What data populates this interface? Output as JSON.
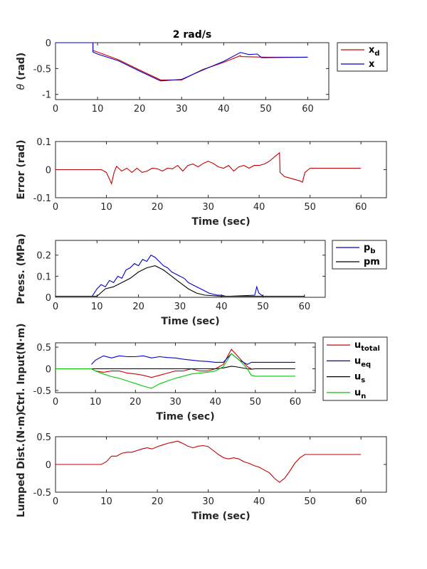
{
  "chart_data": [
    {
      "type": "line",
      "title": "2 rad/s",
      "xlabel": "",
      "ylabel": "θ (rad)",
      "xlim": [
        0,
        65
      ],
      "ylim": [
        -1.1,
        0
      ],
      "xticks": [
        "0",
        "10",
        "20",
        "30",
        "40",
        "50",
        "60"
      ],
      "yticks": [
        "0",
        "-0.5",
        "-1"
      ],
      "legend": [
        {
          "label": "x",
          "sub": "d",
          "color": "#d00000"
        },
        {
          "label": "x",
          "sub": "",
          "color": "#0000c8"
        }
      ],
      "series": [
        {
          "name": "x_d",
          "color": "#d00000",
          "x": [
            0,
            8.9,
            8.9,
            15,
            20,
            25,
            30,
            35,
            40,
            44,
            44.01,
            50,
            60
          ],
          "y": [
            0,
            0,
            -0.15,
            -0.33,
            -0.53,
            -0.72,
            -0.72,
            -0.52,
            -0.38,
            -0.25,
            -0.27,
            -0.28,
            -0.28
          ]
        },
        {
          "name": "x",
          "color": "#0000c8",
          "x": [
            0,
            8.9,
            8.9,
            10,
            15,
            20,
            25,
            30,
            35,
            40,
            44,
            44.5,
            46,
            48,
            49,
            50,
            60
          ],
          "y": [
            0,
            0,
            -0.18,
            -0.22,
            -0.35,
            -0.55,
            -0.74,
            -0.71,
            -0.53,
            -0.36,
            -0.19,
            -0.2,
            -0.23,
            -0.22,
            -0.29,
            -0.29,
            -0.28
          ]
        }
      ]
    },
    {
      "type": "line",
      "title": "",
      "xlabel": "Time (sec)",
      "ylabel": "Error (rad)",
      "xlim": [
        0,
        65
      ],
      "ylim": [
        -0.1,
        0.1
      ],
      "xticks": [
        "0",
        "10",
        "20",
        "30",
        "40",
        "50",
        "60"
      ],
      "yticks": [
        "0.1",
        "0",
        "-0.1"
      ],
      "series": [
        {
          "name": "error",
          "color": "#c00000",
          "x": [
            0,
            9,
            10,
            10.5,
            11,
            11.5,
            12,
            13,
            14,
            15,
            16,
            17,
            18,
            19,
            20,
            21,
            22,
            23,
            24,
            25,
            26,
            27,
            28,
            29,
            30,
            31,
            32,
            33,
            34,
            35,
            36,
            37,
            38,
            39,
            40,
            41,
            42,
            43,
            44,
            44.1,
            45,
            46,
            47,
            48,
            48.5,
            49,
            50,
            60
          ],
          "y": [
            0,
            0,
            -0.01,
            -0.03,
            -0.05,
            -0.01,
            0.012,
            -0.005,
            0.005,
            -0.01,
            0.005,
            -0.01,
            -0.005,
            0.005,
            0.003,
            -0.005,
            0.005,
            0.003,
            0.015,
            -0.005,
            0.015,
            0.02,
            0.01,
            0.022,
            0.03,
            0.022,
            0.01,
            0.005,
            0.015,
            -0.005,
            0.01,
            0.015,
            0.005,
            0.015,
            0.015,
            0.02,
            0.03,
            0.045,
            0.06,
            -0.01,
            -0.025,
            -0.03,
            -0.035,
            -0.04,
            -0.045,
            -0.01,
            0.005,
            0.005
          ]
        }
      ]
    },
    {
      "type": "line",
      "title": "",
      "xlabel": "Time (sec)",
      "ylabel": "Press. (MPa)",
      "xlim": [
        0,
        65
      ],
      "ylim": [
        0,
        0.27
      ],
      "xticks": [
        "0",
        "10",
        "20",
        "30",
        "40",
        "50",
        "60"
      ],
      "yticks": [
        "0.2",
        "0.1",
        "0"
      ],
      "legend": [
        {
          "label": "p",
          "sub": "b",
          "color": "#0000c8"
        },
        {
          "label": "pm",
          "sub": "",
          "color": "#000000"
        }
      ],
      "series": [
        {
          "name": "p_b",
          "color": "#0000c8",
          "x": [
            0,
            8.9,
            9,
            10,
            11,
            12,
            13,
            14,
            15,
            16,
            17,
            18,
            19,
            20,
            21,
            22,
            23,
            24,
            25,
            26,
            27,
            28,
            29,
            30,
            31,
            32,
            33,
            34,
            35,
            36,
            37,
            38,
            39,
            40,
            41,
            42,
            48,
            48.5,
            49,
            50,
            60
          ],
          "y": [
            0.005,
            0.005,
            0.01,
            0.04,
            0.06,
            0.05,
            0.08,
            0.07,
            0.1,
            0.09,
            0.13,
            0.14,
            0.16,
            0.15,
            0.18,
            0.17,
            0.2,
            0.19,
            0.17,
            0.15,
            0.14,
            0.12,
            0.11,
            0.1,
            0.09,
            0.07,
            0.06,
            0.05,
            0.04,
            0.03,
            0.02,
            0.015,
            0.01,
            0.01,
            0.005,
            0.005,
            0.01,
            0.05,
            0.02,
            0.005,
            0.005
          ]
        },
        {
          "name": "pm",
          "color": "#000000",
          "x": [
            0,
            10,
            12,
            14,
            16,
            18,
            20,
            22,
            24,
            26,
            28,
            30,
            32,
            34,
            36,
            40,
            42,
            60
          ],
          "y": [
            0.005,
            0.005,
            0.04,
            0.05,
            0.07,
            0.09,
            0.12,
            0.14,
            0.15,
            0.13,
            0.1,
            0.07,
            0.04,
            0.02,
            0.01,
            0.005,
            0.005,
            0.005
          ]
        }
      ]
    },
    {
      "type": "line",
      "title": "",
      "xlabel": "Time (sec)",
      "ylabel": "Ctrl. Input(N·m)",
      "xlim": [
        0,
        65
      ],
      "ylim": [
        -0.55,
        0.6
      ],
      "xticks": [
        "0",
        "10",
        "20",
        "30",
        "40",
        "50",
        "60"
      ],
      "yticks": [
        "0.5",
        "0",
        "-0.5"
      ],
      "legend": [
        {
          "label": "u",
          "sub": "total",
          "color": "#d00000"
        },
        {
          "label": "u",
          "sub": "eq",
          "color": "#0000c8"
        },
        {
          "label": "u",
          "sub": "s",
          "color": "#000000"
        },
        {
          "label": "u",
          "sub": "n",
          "color": "#00c800"
        }
      ],
      "series": [
        {
          "name": "u_total",
          "color": "#d00000",
          "x": [
            9,
            10,
            12,
            14,
            16,
            18,
            20,
            22,
            24,
            26,
            28,
            30,
            32,
            34,
            36,
            38,
            40,
            42,
            44,
            46,
            48,
            49
          ],
          "y": [
            0,
            -0.05,
            -0.08,
            -0.05,
            -0.05,
            -0.1,
            -0.12,
            -0.15,
            -0.2,
            -0.15,
            -0.1,
            -0.05,
            -0.05,
            0,
            -0.05,
            -0.05,
            0,
            0.1,
            0.45,
            0.25,
            0.05,
            0
          ]
        },
        {
          "name": "u_eq",
          "color": "#0000c8",
          "x": [
            9,
            10,
            12,
            14,
            16,
            18,
            20,
            22,
            24,
            26,
            28,
            30,
            32,
            34,
            36,
            38,
            40,
            42,
            44,
            46,
            48,
            49,
            50,
            60
          ],
          "y": [
            0.1,
            0.2,
            0.3,
            0.25,
            0.3,
            0.28,
            0.28,
            0.3,
            0.25,
            0.28,
            0.26,
            0.25,
            0.22,
            0.2,
            0.18,
            0.17,
            0.15,
            0.15,
            0.35,
            0.2,
            0.1,
            0.15,
            0.15,
            0.15
          ]
        },
        {
          "name": "u_s",
          "color": "#000000",
          "x": [
            9,
            30,
            40,
            42,
            44,
            45,
            48,
            49,
            50,
            60
          ],
          "y": [
            0,
            0,
            0,
            0.02,
            0.06,
            0.05,
            0,
            -0.01,
            0,
            0
          ]
        },
        {
          "name": "u_n",
          "color": "#00c800",
          "x": [
            0,
            9,
            10,
            12,
            14,
            16,
            18,
            20,
            22,
            24,
            26,
            28,
            30,
            32,
            34,
            36,
            38,
            40,
            42,
            44,
            46,
            48,
            49,
            50,
            60
          ],
          "y": [
            0,
            0,
            -0.05,
            -0.12,
            -0.18,
            -0.22,
            -0.28,
            -0.34,
            -0.4,
            -0.45,
            -0.35,
            -0.28,
            -0.22,
            -0.17,
            -0.12,
            -0.1,
            -0.08,
            -0.05,
            0.05,
            0.35,
            0.2,
            0,
            -0.15,
            -0.17,
            -0.17
          ]
        }
      ]
    },
    {
      "type": "line",
      "title": "",
      "xlabel": "Time (sec)",
      "ylabel": "Lumped Dist.(N·m)",
      "xlim": [
        0,
        65
      ],
      "ylim": [
        -0.5,
        0.5
      ],
      "xticks": [
        "0",
        "10",
        "20",
        "30",
        "40",
        "50",
        "60"
      ],
      "yticks": [
        "0.5",
        "0",
        "-0.5"
      ],
      "series": [
        {
          "name": "lumped",
          "color": "#c00000",
          "x": [
            0,
            9,
            10,
            11,
            12,
            13,
            14,
            15,
            16,
            17,
            18,
            19,
            20,
            21,
            22,
            23,
            24,
            25,
            26,
            27,
            28,
            29,
            30,
            31,
            32,
            33,
            34,
            35,
            36,
            37,
            38,
            39,
            40,
            41,
            42,
            43,
            44,
            45,
            46,
            47,
            48,
            49,
            60
          ],
          "y": [
            0,
            0,
            0.05,
            0.15,
            0.15,
            0.2,
            0.22,
            0.22,
            0.25,
            0.28,
            0.3,
            0.28,
            0.32,
            0.35,
            0.38,
            0.4,
            0.42,
            0.38,
            0.33,
            0.3,
            0.33,
            0.34,
            0.32,
            0.25,
            0.18,
            0.12,
            0.1,
            0.12,
            0.1,
            0.05,
            0.02,
            -0.02,
            -0.05,
            -0.1,
            -0.15,
            -0.25,
            -0.32,
            -0.25,
            -0.12,
            0.02,
            0.12,
            0.18,
            0.18
          ]
        }
      ]
    }
  ]
}
